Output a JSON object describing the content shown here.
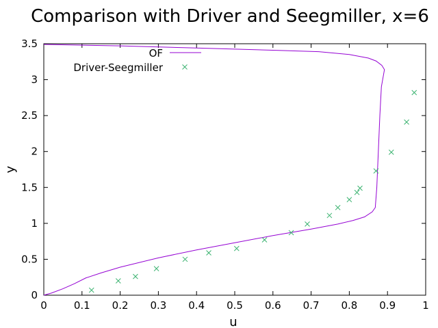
{
  "chart_data": {
    "type": "line",
    "title": "Comparison with Driver and Seegmiller, x=6",
    "xlabel": "u",
    "ylabel": "y",
    "xlim": [
      0,
      1
    ],
    "ylim": [
      0,
      3.5
    ],
    "xticks": [
      "0",
      "0.1",
      "0.2",
      "0.3",
      "0.4",
      "0.5",
      "0.6",
      "0.7",
      "0.8",
      "0.9",
      "1"
    ],
    "yticks": [
      "0",
      "0.5",
      "1",
      "1.5",
      "2",
      "2.5",
      "3",
      "3.5"
    ],
    "grid": false,
    "legend_position": "top-left",
    "series": [
      {
        "name": "OF",
        "style": "line",
        "color": "#9400d3",
        "points": [
          [
            0.0,
            0.0
          ],
          [
            0.02,
            0.03
          ],
          [
            0.05,
            0.09
          ],
          [
            0.08,
            0.16
          ],
          [
            0.11,
            0.24
          ],
          [
            0.15,
            0.31
          ],
          [
            0.2,
            0.39
          ],
          [
            0.3,
            0.52
          ],
          [
            0.4,
            0.63
          ],
          [
            0.5,
            0.73
          ],
          [
            0.6,
            0.83
          ],
          [
            0.7,
            0.92
          ],
          [
            0.77,
            0.99
          ],
          [
            0.81,
            1.04
          ],
          [
            0.84,
            1.09
          ],
          [
            0.86,
            1.16
          ],
          [
            0.868,
            1.22
          ],
          [
            0.872,
            1.5
          ],
          [
            0.876,
            2.0
          ],
          [
            0.88,
            2.5
          ],
          [
            0.884,
            2.9
          ],
          [
            0.89,
            3.08
          ],
          [
            0.892,
            3.14
          ],
          [
            0.885,
            3.2
          ],
          [
            0.87,
            3.26
          ],
          [
            0.85,
            3.3
          ],
          [
            0.8,
            3.35
          ],
          [
            0.72,
            3.39
          ],
          [
            0.6,
            3.41
          ],
          [
            0.4,
            3.44
          ],
          [
            0.2,
            3.47
          ],
          [
            0.0,
            3.49
          ]
        ]
      },
      {
        "name": "Driver-Seegmiller",
        "style": "points",
        "color": "#3cb371",
        "points": [
          [
            0.125,
            0.07
          ],
          [
            0.195,
            0.2
          ],
          [
            0.24,
            0.26
          ],
          [
            0.295,
            0.37
          ],
          [
            0.37,
            0.5
          ],
          [
            0.432,
            0.59
          ],
          [
            0.505,
            0.65
          ],
          [
            0.578,
            0.77
          ],
          [
            0.648,
            0.87
          ],
          [
            0.69,
            0.99
          ],
          [
            0.748,
            1.11
          ],
          [
            0.77,
            1.22
          ],
          [
            0.8,
            1.33
          ],
          [
            0.82,
            1.43
          ],
          [
            0.828,
            1.49
          ],
          [
            0.87,
            1.73
          ],
          [
            0.91,
            1.99
          ],
          [
            0.95,
            2.41
          ],
          [
            0.97,
            2.82
          ]
        ]
      }
    ]
  }
}
